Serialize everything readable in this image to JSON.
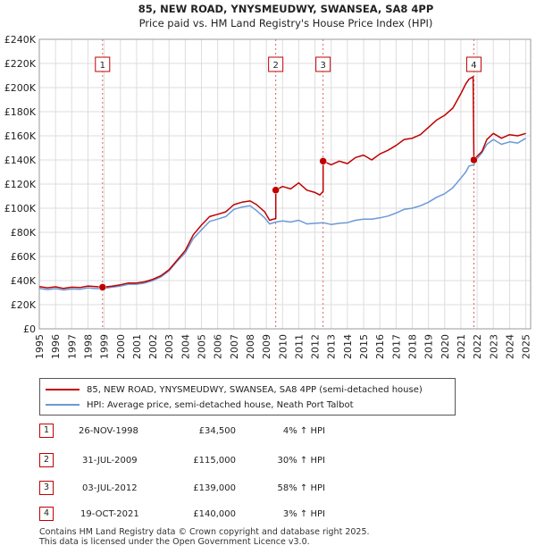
{
  "chart_data": {
    "type": "line",
    "title": "85, NEW ROAD, YNYSMEUDWY, SWANSEA, SA8 4PP",
    "subtitle": "Price paid vs. HM Land Registry's House Price Index (HPI)",
    "xlabel": "",
    "ylabel": "",
    "xlim": [
      1995,
      2025.3
    ],
    "ylim": [
      0,
      240000
    ],
    "y_ticks": [
      {
        "value": 0,
        "label": "£0"
      },
      {
        "value": 20000,
        "label": "£20K"
      },
      {
        "value": 40000,
        "label": "£40K"
      },
      {
        "value": 60000,
        "label": "£60K"
      },
      {
        "value": 80000,
        "label": "£80K"
      },
      {
        "value": 100000,
        "label": "£100K"
      },
      {
        "value": 120000,
        "label": "£120K"
      },
      {
        "value": 140000,
        "label": "£140K"
      },
      {
        "value": 160000,
        "label": "£160K"
      },
      {
        "value": 180000,
        "label": "£180K"
      },
      {
        "value": 200000,
        "label": "£200K"
      },
      {
        "value": 220000,
        "label": "£220K"
      },
      {
        "value": 240000,
        "label": "£240K"
      }
    ],
    "x_ticks": [
      "1995",
      "1996",
      "1997",
      "1998",
      "1999",
      "2000",
      "2001",
      "2002",
      "2003",
      "2004",
      "2005",
      "2006",
      "2007",
      "2008",
      "2009",
      "2010",
      "2011",
      "2012",
      "2013",
      "2014",
      "2015",
      "2016",
      "2017",
      "2018",
      "2019",
      "2020",
      "2021",
      "2022",
      "2023",
      "2024",
      "2025"
    ],
    "grid": true,
    "series": [
      {
        "name": "85, NEW ROAD, YNYSMEUDWY, SWANSEA, SA8 4PP (semi-detached house)",
        "color": "#c00000",
        "points": [
          [
            1995,
            35000
          ],
          [
            1995.5,
            34000
          ],
          [
            1996,
            34800
          ],
          [
            1996.5,
            33500
          ],
          [
            1997,
            34500
          ],
          [
            1997.5,
            34200
          ],
          [
            1998,
            35500
          ],
          [
            1998.5,
            35000
          ],
          [
            1998.9,
            34500
          ],
          [
            1999.5,
            35300
          ],
          [
            2000,
            36500
          ],
          [
            2000.5,
            38000
          ],
          [
            2001,
            38000
          ],
          [
            2001.5,
            39000
          ],
          [
            2002,
            41000
          ],
          [
            2002.5,
            44000
          ],
          [
            2003,
            49000
          ],
          [
            2003.5,
            57000
          ],
          [
            2004,
            65000
          ],
          [
            2004.5,
            78000
          ],
          [
            2005,
            86000
          ],
          [
            2005.5,
            93000
          ],
          [
            2006,
            95000
          ],
          [
            2006.5,
            97000
          ],
          [
            2007,
            103000
          ],
          [
            2007.5,
            105000
          ],
          [
            2008,
            106000
          ],
          [
            2008.4,
            103000
          ],
          [
            2008.9,
            97000
          ],
          [
            2009.2,
            90000
          ],
          [
            2009.58,
            91500
          ],
          [
            2009.58,
            115000
          ],
          [
            2010,
            118000
          ],
          [
            2010.5,
            116000
          ],
          [
            2011,
            121000
          ],
          [
            2011.5,
            115000
          ],
          [
            2012,
            113000
          ],
          [
            2012.3,
            111000
          ],
          [
            2012.5,
            114000
          ],
          [
            2012.5,
            139000
          ],
          [
            2013,
            136000
          ],
          [
            2013.5,
            139000
          ],
          [
            2014,
            137000
          ],
          [
            2014.5,
            142000
          ],
          [
            2015,
            144000
          ],
          [
            2015.5,
            140000
          ],
          [
            2016,
            145000
          ],
          [
            2016.5,
            148000
          ],
          [
            2017,
            152000
          ],
          [
            2017.5,
            157000
          ],
          [
            2018,
            158000
          ],
          [
            2018.5,
            161000
          ],
          [
            2019,
            167000
          ],
          [
            2019.5,
            173000
          ],
          [
            2020,
            177000
          ],
          [
            2020.5,
            183000
          ],
          [
            2021,
            195000
          ],
          [
            2021.3,
            203000
          ],
          [
            2021.5,
            207000
          ],
          [
            2021.75,
            209000
          ],
          [
            2021.8,
            140000
          ],
          [
            2022,
            143000
          ],
          [
            2022.3,
            147000
          ],
          [
            2022.6,
            157000
          ],
          [
            2023,
            162000
          ],
          [
            2023.5,
            158000
          ],
          [
            2024,
            161000
          ],
          [
            2024.5,
            160000
          ],
          [
            2025,
            162000
          ]
        ]
      },
      {
        "name": "HPI: Average price, semi-detached house, Neath Port Talbot",
        "color": "#6a9ad6",
        "points": [
          [
            1995,
            33500
          ],
          [
            1995.5,
            32500
          ],
          [
            1996,
            33300
          ],
          [
            1996.5,
            32200
          ],
          [
            1997,
            33000
          ],
          [
            1997.5,
            32800
          ],
          [
            1998,
            34000
          ],
          [
            1998.5,
            33300
          ],
          [
            1998.9,
            33300
          ],
          [
            1999.5,
            34500
          ],
          [
            2000,
            35500
          ],
          [
            2000.5,
            37000
          ],
          [
            2001,
            37000
          ],
          [
            2001.5,
            38000
          ],
          [
            2002,
            40000
          ],
          [
            2002.5,
            43000
          ],
          [
            2003,
            48000
          ],
          [
            2003.5,
            56000
          ],
          [
            2004,
            63000
          ],
          [
            2004.5,
            75000
          ],
          [
            2005,
            82000
          ],
          [
            2005.5,
            89000
          ],
          [
            2006,
            91000
          ],
          [
            2006.5,
            93000
          ],
          [
            2007,
            99000
          ],
          [
            2007.5,
            101000
          ],
          [
            2008,
            102000
          ],
          [
            2008.4,
            98000
          ],
          [
            2008.9,
            92000
          ],
          [
            2009.2,
            87000
          ],
          [
            2009.58,
            88500
          ],
          [
            2010,
            89500
          ],
          [
            2010.5,
            88500
          ],
          [
            2011,
            90000
          ],
          [
            2011.5,
            87000
          ],
          [
            2012,
            87500
          ],
          [
            2012.5,
            88000
          ],
          [
            2013,
            86500
          ],
          [
            2013.5,
            87500
          ],
          [
            2014,
            88000
          ],
          [
            2014.5,
            90000
          ],
          [
            2015,
            91000
          ],
          [
            2015.5,
            91000
          ],
          [
            2016,
            92000
          ],
          [
            2016.5,
            93500
          ],
          [
            2017,
            96000
          ],
          [
            2017.5,
            99000
          ],
          [
            2018,
            100000
          ],
          [
            2018.5,
            102000
          ],
          [
            2019,
            105000
          ],
          [
            2019.5,
            109000
          ],
          [
            2020,
            112000
          ],
          [
            2020.5,
            117000
          ],
          [
            2021,
            125000
          ],
          [
            2021.3,
            130000
          ],
          [
            2021.5,
            135000
          ],
          [
            2021.8,
            136000
          ],
          [
            2022,
            141000
          ],
          [
            2022.3,
            146000
          ],
          [
            2022.6,
            153000
          ],
          [
            2023,
            157000
          ],
          [
            2023.5,
            153000
          ],
          [
            2024,
            155000
          ],
          [
            2024.5,
            154000
          ],
          [
            2025,
            158000
          ]
        ]
      }
    ],
    "annotations": [
      {
        "label": "1",
        "x": 1998.9,
        "price": 34500
      },
      {
        "label": "2",
        "x": 2009.58,
        "price": 115000
      },
      {
        "label": "3",
        "x": 2012.5,
        "price": 139000
      },
      {
        "label": "4",
        "x": 2021.8,
        "price": 140000
      }
    ],
    "legend_position": "below"
  },
  "legend": {
    "entries": [
      {
        "label": "85, NEW ROAD, YNYSMEUDWY, SWANSEA, SA8 4PP (semi-detached house)",
        "color": "#c00000"
      },
      {
        "label": "HPI: Average price, semi-detached house, Neath Port Talbot",
        "color": "#6a9ad6"
      }
    ]
  },
  "sales_table": [
    {
      "num": "1",
      "date": "26-NOV-1998",
      "price": "£34,500",
      "hpi": "4% ↑ HPI"
    },
    {
      "num": "2",
      "date": "31-JUL-2009",
      "price": "£115,000",
      "hpi": "30% ↑ HPI"
    },
    {
      "num": "3",
      "date": "03-JUL-2012",
      "price": "£139,000",
      "hpi": "58% ↑ HPI"
    },
    {
      "num": "4",
      "date": "19-OCT-2021",
      "price": "£140,000",
      "hpi": "3% ↑ HPI"
    }
  ],
  "footer": {
    "line1": "Contains HM Land Registry data © Crown copyright and database right 2025.",
    "line2": "This data is licensed under the Open Government Licence v3.0."
  }
}
